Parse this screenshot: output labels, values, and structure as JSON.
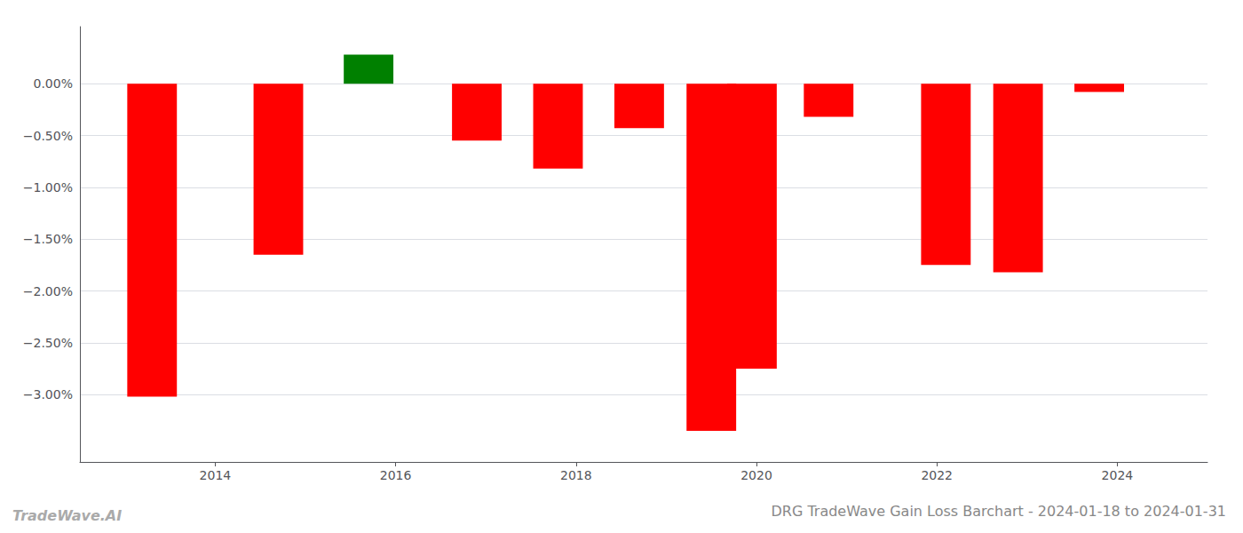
{
  "chart_data": {
    "type": "bar",
    "title": "DRG TradeWave Gain Loss Barchart - 2024-01-18 to 2024-01-31",
    "annotations": [
      "TradeWave.AI"
    ],
    "x": [
      2013.3,
      2014.7,
      2015.7,
      2016.9,
      2017.8,
      2018.7,
      2019.5,
      2019.95,
      2020.8,
      2022.1,
      2022.9,
      2023.8
    ],
    "values": [
      -3.02,
      -1.65,
      0.28,
      -0.55,
      -0.82,
      -0.43,
      -3.35,
      -2.75,
      -0.32,
      -1.75,
      -1.82,
      -0.08
    ],
    "colors": [
      "#ff0000",
      "#ff0000",
      "#008000",
      "#ff0000",
      "#ff0000",
      "#ff0000",
      "#ff0000",
      "#ff0000",
      "#ff0000",
      "#ff0000",
      "#ff0000",
      "#ff0000"
    ],
    "xlim": [
      2012.5,
      2025.0
    ],
    "xticks": [
      2014,
      2016,
      2018,
      2020,
      2022,
      2024
    ],
    "ylim": [
      -3.65,
      0.55
    ],
    "yticks": [
      {
        "value": 0.0,
        "label": "0.00%"
      },
      {
        "value": -0.5,
        "label": "−0.50%"
      },
      {
        "value": -1.0,
        "label": "−1.00%"
      },
      {
        "value": -1.5,
        "label": "−1.50%"
      },
      {
        "value": -2.0,
        "label": "−2.00%"
      },
      {
        "value": -2.5,
        "label": "−2.50%"
      },
      {
        "value": -3.0,
        "label": "−3.00%"
      }
    ],
    "grid": true
  }
}
